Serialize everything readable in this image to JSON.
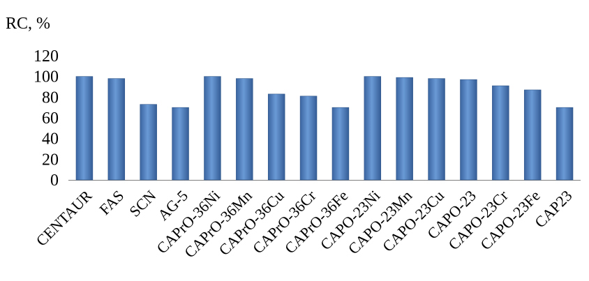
{
  "chart_data": {
    "type": "bar",
    "title": "",
    "xlabel": "",
    "ylabel": "RC, %",
    "ylim": [
      0,
      120
    ],
    "yticks": [
      0,
      20,
      40,
      60,
      80,
      100,
      120
    ],
    "grid": false,
    "legend": "none",
    "bar_color": "#4f81bd",
    "categories": [
      "CENTAUR",
      "FAS",
      "SCN",
      "AG-5",
      "CAPrO-36Ni",
      "CAPrO-36Mn",
      "CAPrO-36Cu",
      "CAPrO-36Cr",
      "CAPrO-36Fe",
      "CAPO-23Ni",
      "CAPO-23Mn",
      "CAPO-23Cu",
      "CAPO-23",
      "CAPO-23Cr",
      "CAPO-23Fe",
      "CAP23"
    ],
    "values": [
      100,
      98,
      73,
      70,
      100,
      98,
      83,
      81,
      70,
      100,
      99,
      98,
      97,
      91,
      87,
      70
    ]
  }
}
